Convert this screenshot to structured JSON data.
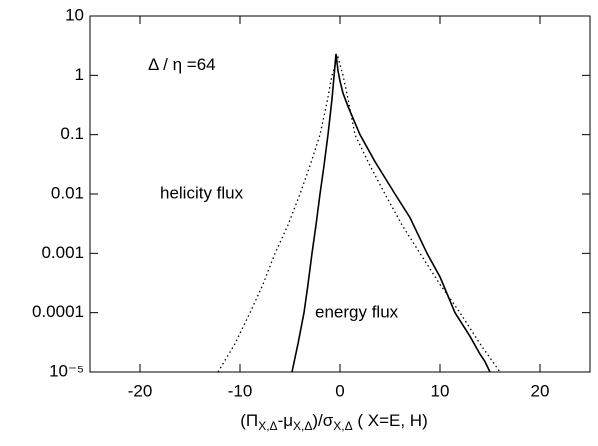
{
  "chart_data": {
    "type": "line",
    "series": [
      {
        "name": "energy flux",
        "color": "#000000",
        "dash": "solid",
        "x": [
          -4.8,
          -4.2,
          -3.6,
          -3.2,
          -2.8,
          -2.4,
          -2.0,
          -1.6,
          -1.2,
          -0.8,
          -0.4,
          -0.2,
          0.0,
          0.3,
          0.8,
          2.0,
          3.5,
          5.5,
          7.0,
          8.7,
          10.0,
          11.5,
          13.0,
          14.0,
          14.5,
          15.0
        ],
        "values": [
          1e-05,
          3e-05,
          0.0001,
          0.0003,
          0.001,
          0.003,
          0.01,
          0.03,
          0.1,
          0.4,
          2.3,
          1.2,
          0.8,
          0.5,
          0.3,
          0.1,
          0.035,
          0.01,
          0.004,
          0.001,
          0.0004,
          0.0001,
          4e-05,
          2e-05,
          1.5e-05,
          1e-05
        ]
      },
      {
        "name": "helicity flux",
        "color": "#000000",
        "dash": "dotted",
        "x": [
          -12.2,
          -10.5,
          -9.0,
          -7.7,
          -6.5,
          -5.2,
          -4.0,
          -3.0,
          -2.0,
          -1.3,
          -0.8,
          -0.2,
          0.3,
          0.8,
          1.5,
          3.0,
          4.5,
          6.2,
          8.0,
          10.0,
          12.0,
          14.0,
          16.0
        ],
        "values": [
          1e-05,
          3e-05,
          0.0001,
          0.0003,
          0.001,
          0.003,
          0.01,
          0.03,
          0.1,
          0.35,
          1.0,
          2.0,
          1.0,
          0.4,
          0.1,
          0.03,
          0.01,
          0.003,
          0.001,
          0.0003,
          0.0001,
          3e-05,
          1e-05
        ]
      }
    ],
    "x_label_parts": [
      "(Π",
      "X,Δ",
      "-μ",
      "X,Δ",
      ")/σ",
      "X,Δ",
      " ( X=E, H)"
    ],
    "xlim": [
      -25,
      25
    ],
    "xticks": [
      -20,
      -10,
      0,
      10,
      20
    ],
    "ylim": [
      1e-05,
      10
    ],
    "log_y": true,
    "yticks": [
      10,
      1,
      0.1,
      0.01,
      0.001,
      0.0001,
      {
        "value": 1e-05,
        "label": "10⁻⁵"
      }
    ],
    "annotations": [
      "Δ / η =64",
      "helicity flux",
      "energy flux"
    ]
  }
}
